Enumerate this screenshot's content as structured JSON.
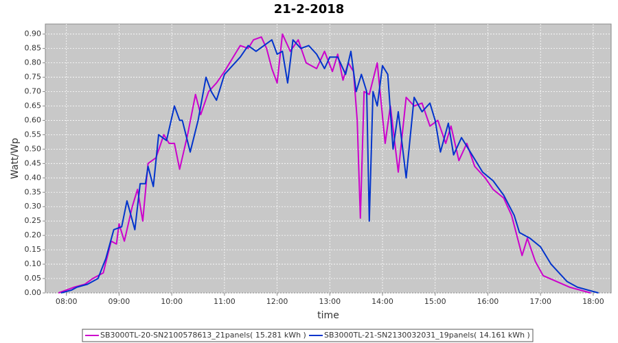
{
  "chart_data": {
    "type": "line",
    "title": "21-2-2018",
    "x_label": "time",
    "y_label": "Watt/Wp",
    "xlim": [
      7.6,
      18.34
    ],
    "ylim": [
      0,
      0.935
    ],
    "grid": true,
    "xticks": [
      {
        "value": 8,
        "label": "08:00"
      },
      {
        "value": 9,
        "label": "09:00"
      },
      {
        "value": 10,
        "label": "10:00"
      },
      {
        "value": 11,
        "label": "11:00"
      },
      {
        "value": 12,
        "label": "12:00"
      },
      {
        "value": 13,
        "label": "13:00"
      },
      {
        "value": 14,
        "label": "14:00"
      },
      {
        "value": 15,
        "label": "15:00"
      },
      {
        "value": 16,
        "label": "16:00"
      },
      {
        "value": 17,
        "label": "17:00"
      },
      {
        "value": 18,
        "label": "18:00"
      }
    ],
    "yticks": [
      {
        "value": 0,
        "label": "0.00"
      },
      {
        "value": 0.05,
        "label": "0.05"
      },
      {
        "value": 0.1,
        "label": "0.10"
      },
      {
        "value": 0.15,
        "label": "0.15"
      },
      {
        "value": 0.2,
        "label": "0.20"
      },
      {
        "value": 0.25,
        "label": "0.25"
      },
      {
        "value": 0.3,
        "label": "0.30"
      },
      {
        "value": 0.35,
        "label": "0.35"
      },
      {
        "value": 0.4,
        "label": "0.40"
      },
      {
        "value": 0.45,
        "label": "0.45"
      },
      {
        "value": 0.5,
        "label": "0.50"
      },
      {
        "value": 0.55,
        "label": "0.55"
      },
      {
        "value": 0.6,
        "label": "0.60"
      },
      {
        "value": 0.65,
        "label": "0.65"
      },
      {
        "value": 0.7,
        "label": "0.70"
      },
      {
        "value": 0.75,
        "label": "0.75"
      },
      {
        "value": 0.8,
        "label": "0.80"
      },
      {
        "value": 0.85,
        "label": "0.85"
      },
      {
        "value": 0.9,
        "label": "0.90"
      }
    ],
    "series": [
      {
        "name": "SB3000TL-20-SN2100578613_21panels( 15.281 kWh )",
        "color": "#cc00cc",
        "x": [
          7.85,
          8,
          8.15,
          8.35,
          8.5,
          8.7,
          8.85,
          8.95,
          9.0,
          9.1,
          9.25,
          9.35,
          9.45,
          9.55,
          9.7,
          9.85,
          9.95,
          10.05,
          10.15,
          10.3,
          10.45,
          10.55,
          10.7,
          10.85,
          11,
          11.2,
          11.3,
          11.45,
          11.55,
          11.7,
          11.8,
          11.9,
          12,
          12.1,
          12.25,
          12.4,
          12.55,
          12.75,
          12.9,
          13.05,
          13.15,
          13.25,
          13.35,
          13.45,
          13.52,
          13.58,
          13.65,
          13.75,
          13.9,
          14.05,
          14.15,
          14.3,
          14.45,
          14.6,
          14.75,
          14.9,
          15.05,
          15.2,
          15.3,
          15.45,
          15.6,
          15.75,
          15.95,
          16.1,
          16.3,
          16.45,
          16.65,
          16.75,
          16.9,
          17.05,
          17.3,
          17.55,
          17.75,
          17.95
        ],
        "values": [
          0,
          0.01,
          0.02,
          0.03,
          0.05,
          0.07,
          0.18,
          0.17,
          0.24,
          0.18,
          0.3,
          0.36,
          0.25,
          0.45,
          0.47,
          0.55,
          0.52,
          0.52,
          0.43,
          0.55,
          0.69,
          0.62,
          0.7,
          0.73,
          0.77,
          0.83,
          0.86,
          0.85,
          0.88,
          0.89,
          0.85,
          0.78,
          0.73,
          0.9,
          0.84,
          0.88,
          0.8,
          0.78,
          0.84,
          0.77,
          0.83,
          0.74,
          0.8,
          0.77,
          0.6,
          0.26,
          0.7,
          0.69,
          0.8,
          0.52,
          0.65,
          0.42,
          0.68,
          0.65,
          0.66,
          0.58,
          0.6,
          0.52,
          0.58,
          0.46,
          0.52,
          0.44,
          0.4,
          0.36,
          0.33,
          0.27,
          0.13,
          0.19,
          0.11,
          0.06,
          0.04,
          0.02,
          0.01,
          0
        ]
      },
      {
        "name": "SB3000TL-21-SN2130032031_19panels( 14.161 kWh )",
        "color": "#0033cc",
        "x": [
          7.9,
          8.1,
          8.2,
          8.4,
          8.6,
          8.75,
          8.9,
          9.05,
          9.15,
          9.3,
          9.4,
          9.5,
          9.55,
          9.65,
          9.75,
          9.9,
          10.05,
          10.15,
          10.2,
          10.35,
          10.5,
          10.65,
          10.75,
          10.85,
          11,
          11.15,
          11.3,
          11.45,
          11.6,
          11.75,
          11.9,
          12,
          12.1,
          12.2,
          12.3,
          12.45,
          12.6,
          12.75,
          12.9,
          13.0,
          13.15,
          13.3,
          13.4,
          13.5,
          13.6,
          13.7,
          13.75,
          13.82,
          13.9,
          14,
          14.1,
          14.2,
          14.3,
          14.45,
          14.6,
          14.75,
          14.9,
          15,
          15.1,
          15.25,
          15.35,
          15.5,
          15.7,
          15.9,
          16.1,
          16.3,
          16.5,
          16.6,
          16.8,
          17.0,
          17.2,
          17.5,
          17.7,
          17.9,
          18.1
        ],
        "values": [
          0,
          0.01,
          0.02,
          0.03,
          0.05,
          0.12,
          0.22,
          0.23,
          0.32,
          0.22,
          0.38,
          0.38,
          0.44,
          0.37,
          0.55,
          0.53,
          0.65,
          0.6,
          0.6,
          0.49,
          0.6,
          0.75,
          0.7,
          0.67,
          0.76,
          0.79,
          0.82,
          0.86,
          0.84,
          0.86,
          0.88,
          0.83,
          0.84,
          0.73,
          0.88,
          0.85,
          0.86,
          0.83,
          0.78,
          0.82,
          0.82,
          0.76,
          0.84,
          0.7,
          0.76,
          0.7,
          0.25,
          0.7,
          0.65,
          0.79,
          0.76,
          0.5,
          0.63,
          0.4,
          0.68,
          0.63,
          0.66,
          0.6,
          0.49,
          0.59,
          0.48,
          0.54,
          0.48,
          0.42,
          0.39,
          0.34,
          0.27,
          0.21,
          0.19,
          0.16,
          0.1,
          0.04,
          0.02,
          0.01,
          0
        ]
      }
    ]
  }
}
